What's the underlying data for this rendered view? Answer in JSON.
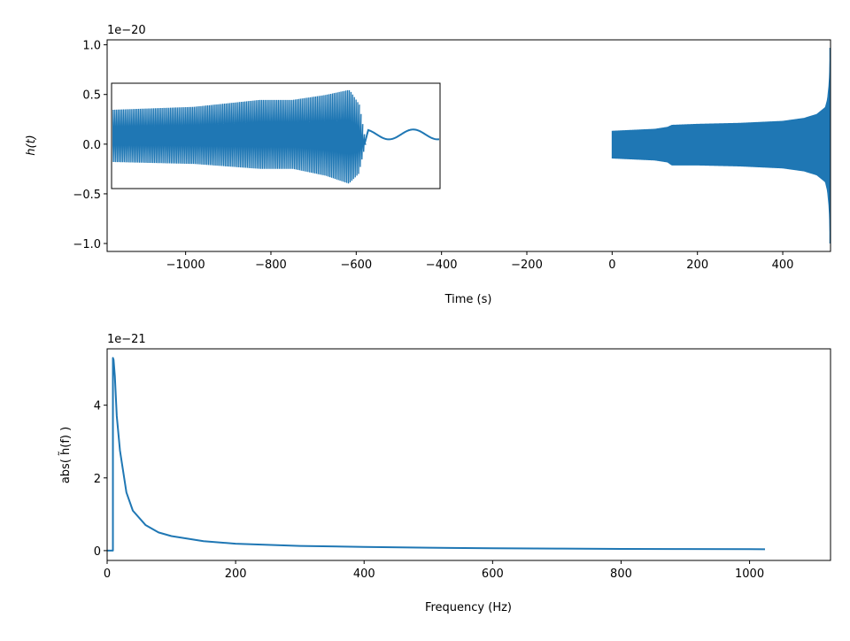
{
  "colors": {
    "line": "#1f77b4",
    "axis": "#000000",
    "background": "#ffffff"
  },
  "chart_data": [
    {
      "type": "line",
      "title": "",
      "xlabel": "Time (s)",
      "ylabel": "h(t)",
      "y_offset_label": "1e−20",
      "xlim": [
        -1184,
        512
      ],
      "ylim": [
        -1.08,
        1.05
      ],
      "xticks": [
        {
          "value": -1000,
          "label": "−1000"
        },
        {
          "value": -800,
          "label": "−800"
        },
        {
          "value": -600,
          "label": "−600"
        },
        {
          "value": -400,
          "label": "−400"
        },
        {
          "value": -200,
          "label": "−200"
        },
        {
          "value": 0,
          "label": "0"
        },
        {
          "value": 200,
          "label": "200"
        },
        {
          "value": 400,
          "label": "400"
        }
      ],
      "yticks": [
        {
          "value": 1.0,
          "label": "1.0"
        },
        {
          "value": 0.5,
          "label": "0.5"
        },
        {
          "value": 0.0,
          "label": "0.0"
        },
        {
          "value": -0.5,
          "label": "−0.5"
        },
        {
          "value": -1.0,
          "label": "−1.0"
        }
      ],
      "grid": false,
      "series": [
        {
          "kind": "envelope",
          "x": [
            0,
            50,
            100,
            130,
            140,
            200,
            300,
            400,
            450,
            480,
            500,
            505,
            509,
            511,
            512
          ],
          "upper": [
            0.13,
            0.14,
            0.15,
            0.17,
            0.19,
            0.2,
            0.21,
            0.23,
            0.26,
            0.3,
            0.37,
            0.45,
            0.62,
            0.85,
            0.95
          ],
          "lower": [
            -0.14,
            -0.15,
            -0.16,
            -0.18,
            -0.21,
            -0.21,
            -0.22,
            -0.24,
            -0.27,
            -0.31,
            -0.38,
            -0.47,
            -0.65,
            -0.9,
            -0.98
          ]
        }
      ],
      "inset": {
        "content": "zoomed waveform with merger and ringdown",
        "envelope": {
          "t": [
            0.0,
            0.25,
            0.45,
            0.55,
            0.65,
            0.72,
            0.75,
            0.77
          ],
          "upper": [
            0.35,
            0.38,
            0.45,
            0.45,
            0.5,
            0.55,
            0.4,
            0.0
          ],
          "lower": [
            -0.18,
            -0.2,
            -0.25,
            -0.25,
            -0.32,
            -0.4,
            -0.3,
            0.0
          ]
        },
        "ringdown": {
          "t": [
            0.77,
            1.0
          ],
          "mean": 0.1,
          "amplitude": 0.05,
          "cycles": 1.55
        },
        "ylim": [
          -0.45,
          0.62
        ]
      }
    },
    {
      "type": "line",
      "title": "",
      "xlabel": "Frequency (Hz)",
      "ylabel": "abs( h̃(f) )",
      "y_offset_label": "1e−21",
      "xlim": [
        0,
        1126
      ],
      "ylim": [
        -0.27,
        5.55
      ],
      "xticks": [
        {
          "value": 0,
          "label": "0"
        },
        {
          "value": 200,
          "label": "200"
        },
        {
          "value": 400,
          "label": "400"
        },
        {
          "value": 600,
          "label": "600"
        },
        {
          "value": 800,
          "label": "800"
        },
        {
          "value": 1000,
          "label": "1000"
        }
      ],
      "yticks": [
        {
          "value": 0,
          "label": "0"
        },
        {
          "value": 2,
          "label": "2"
        },
        {
          "value": 4,
          "label": "4"
        }
      ],
      "grid": false,
      "series": [
        {
          "x": [
            0,
            9,
            9.01,
            10,
            12,
            15,
            20,
            30,
            40,
            60,
            80,
            100,
            150,
            200,
            300,
            400,
            500,
            600,
            700,
            800,
            900,
            1000,
            1024
          ],
          "y": [
            0,
            0,
            5.3,
            5.25,
            4.8,
            3.7,
            2.75,
            1.6,
            1.1,
            0.7,
            0.5,
            0.4,
            0.26,
            0.19,
            0.13,
            0.1,
            0.08,
            0.065,
            0.055,
            0.048,
            0.043,
            0.039,
            0.038
          ]
        }
      ]
    }
  ]
}
